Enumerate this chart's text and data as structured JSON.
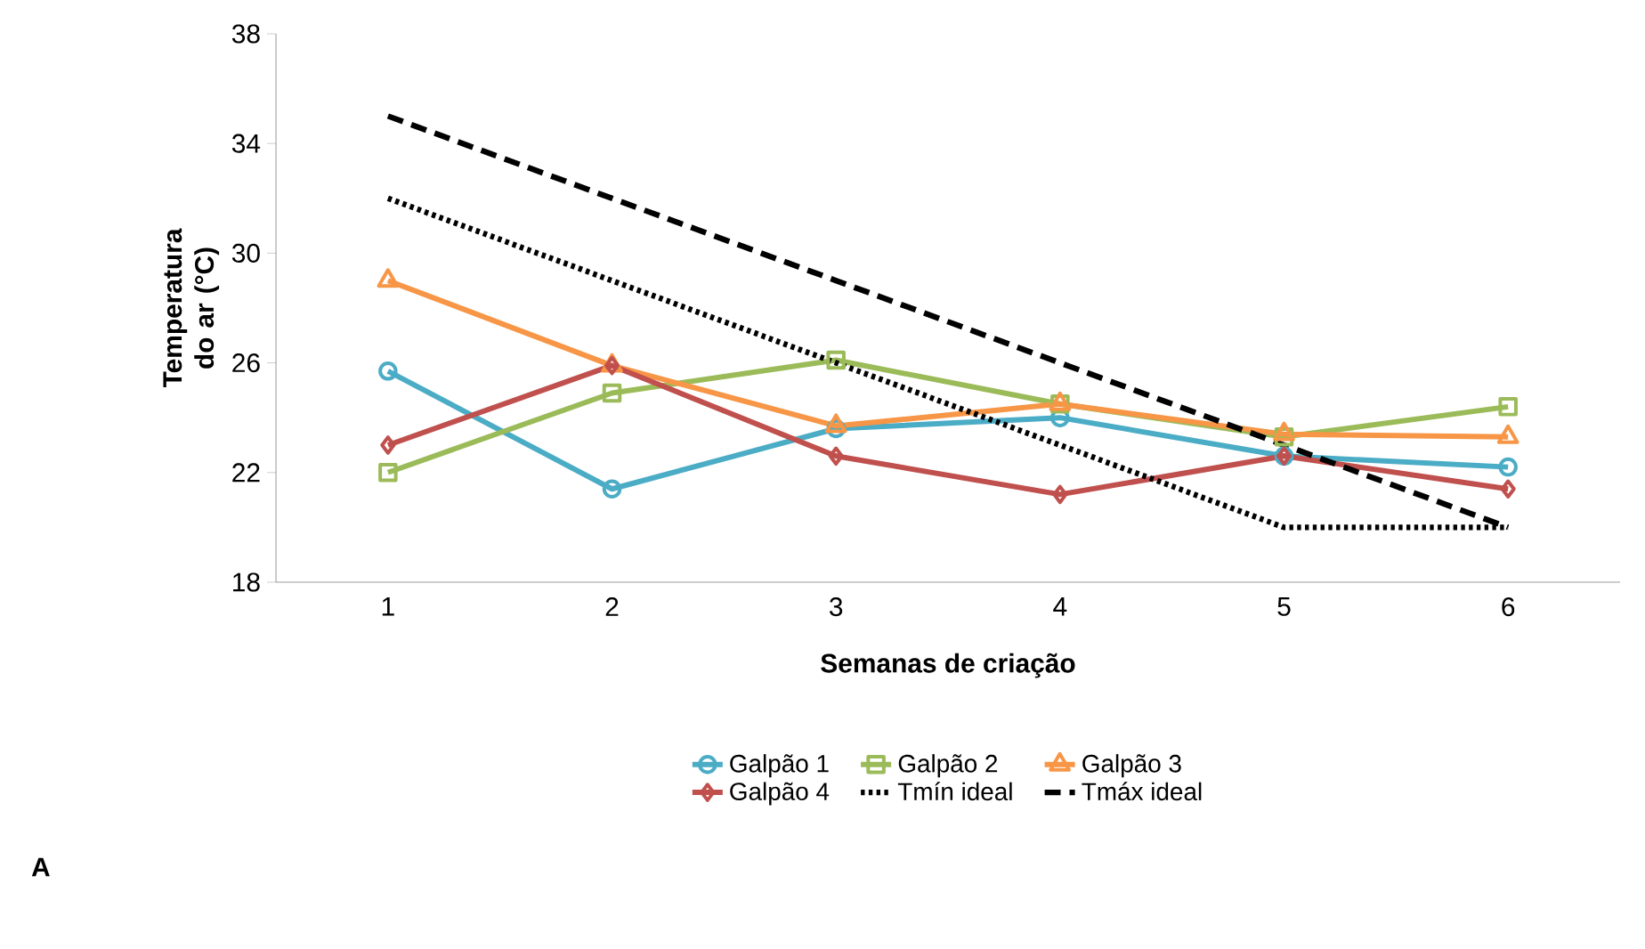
{
  "chart_data": {
    "type": "line",
    "xlabel": "Semanas de criação",
    "ylabel": "Temperatura do ar (°C)",
    "categories": [
      "1",
      "2",
      "3",
      "4",
      "5",
      "6"
    ],
    "ylim": [
      18,
      38
    ],
    "yticks": [
      18,
      22,
      26,
      30,
      34,
      38
    ],
    "grid": false,
    "legend": "bottom",
    "series": [
      {
        "name": "Galpão 1",
        "color": "#4bacc6",
        "marker": "circle",
        "line_style": "solid",
        "values": [
          25.7,
          21.4,
          23.6,
          24.0,
          22.6,
          22.2
        ]
      },
      {
        "name": "Galpão 2",
        "color": "#9bbb59",
        "marker": "square",
        "line_style": "solid",
        "values": [
          22.0,
          24.9,
          26.1,
          24.5,
          23.3,
          24.4
        ]
      },
      {
        "name": "Galpão 3",
        "color": "#f79646",
        "marker": "triangle",
        "line_style": "solid",
        "values": [
          29.0,
          25.9,
          23.7,
          24.5,
          23.4,
          23.3
        ]
      },
      {
        "name": "Galpão 4",
        "color": "#c0504d",
        "marker": "diamond",
        "line_style": "solid",
        "values": [
          23.0,
          25.9,
          22.6,
          21.2,
          22.6,
          21.4
        ]
      },
      {
        "name": "Tmín ideal",
        "color": "#000000",
        "marker": "none",
        "line_style": "dotted",
        "values": [
          32,
          29,
          26,
          23,
          20,
          20
        ]
      },
      {
        "name": "Tmáx ideal",
        "color": "#000000",
        "marker": "none",
        "line_style": "dashed",
        "values": [
          35,
          32,
          29,
          26,
          23,
          20
        ]
      }
    ],
    "annotations": [
      "A"
    ]
  }
}
